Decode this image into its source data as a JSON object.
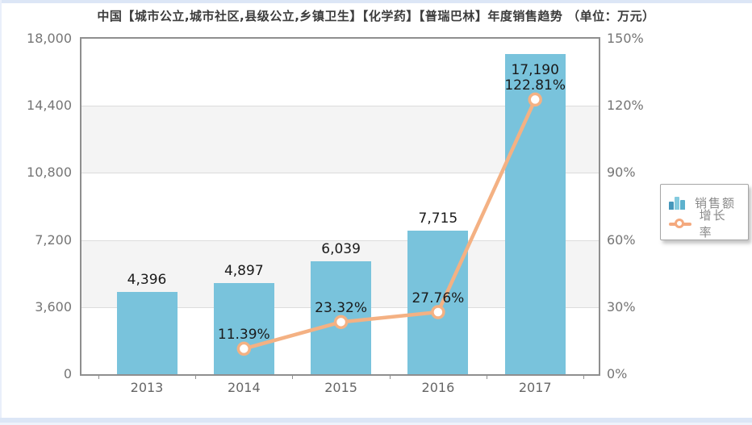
{
  "title": "中国【城市公立,城市社区,县级公立,乡镇卫生】【化学药】【普瑞巴林】年度销售趋势 （单位：万元）",
  "legend": {
    "items": [
      {
        "label": "销售额",
        "icon": "bar-series-icon"
      },
      {
        "label": "增长率",
        "icon": "line-series-icon"
      }
    ]
  },
  "colors": {
    "bar": "#79C3DC",
    "line": "#F4B183",
    "marker_fill": "#FFFFFF",
    "band_gray": "#F4F4F4",
    "grid_line": "#DCDCDC",
    "plot_border": "#8F8F8F",
    "axis_text": "#757575",
    "label_text": "#1A1A1A",
    "legend_text": "#8A8A8A",
    "panel_edge": "#DCE6F6"
  },
  "chart_data": {
    "type": "combo",
    "title": "中国【城市公立,城市社区,县级公立,乡镇卫生】【化学药】【普瑞巴林】年度销售趋势 （单位：万元）",
    "categories": [
      "2013",
      "2014",
      "2015",
      "2016",
      "2017"
    ],
    "series": [
      {
        "name": "销售额",
        "type": "bar",
        "axis": "left",
        "values": [
          4396,
          4897,
          6039,
          7715,
          17190
        ],
        "labels": [
          "4,396",
          "4,897",
          "6,039",
          "7,715",
          "17,190"
        ]
      },
      {
        "name": "增长率",
        "type": "line",
        "axis": "right",
        "values": [
          null,
          11.39,
          23.32,
          27.76,
          122.81
        ],
        "labels": [
          null,
          "11.39%",
          "23.32%",
          "27.76%",
          "122.81%"
        ]
      }
    ],
    "left_axis": {
      "min": 0,
      "max": 18000,
      "tick_values": [
        0,
        3600,
        7200,
        10800,
        14400,
        18000
      ],
      "tick_labels": [
        "0",
        "3,600",
        "7,200",
        "10,800",
        "14,400",
        "18,000"
      ]
    },
    "right_axis": {
      "min": 0,
      "max": 150,
      "tick_values": [
        0,
        30,
        60,
        90,
        120,
        150
      ],
      "tick_labels": [
        "0%",
        "30%",
        "60%",
        "90%",
        "120%",
        "150%"
      ]
    },
    "legend_position": "middle-right",
    "grid": "horizontal alternating bands"
  }
}
